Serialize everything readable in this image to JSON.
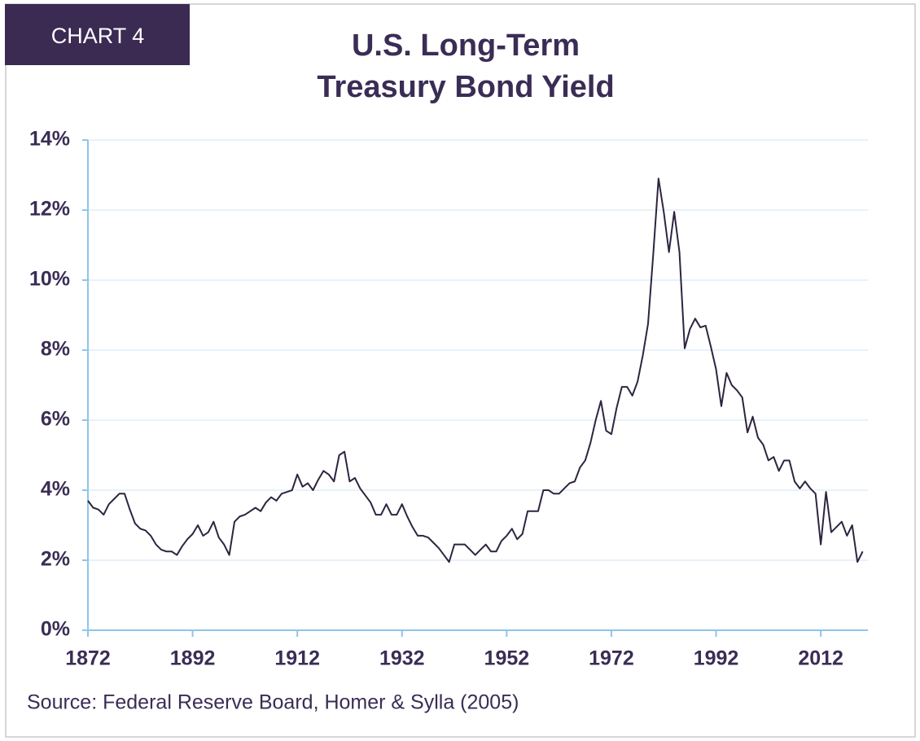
{
  "badge": "CHART 4",
  "chart_data": {
    "type": "line",
    "title": [
      "U.S. Long-Term",
      "Treasury Bond Yield"
    ],
    "source": "Source: Federal Reserve Board, Homer & Sylla (2005)",
    "x": [
      1872,
      1873,
      1874,
      1875,
      1876,
      1877,
      1878,
      1879,
      1880,
      1881,
      1882,
      1883,
      1884,
      1885,
      1886,
      1887,
      1888,
      1889,
      1890,
      1891,
      1892,
      1893,
      1894,
      1895,
      1896,
      1897,
      1898,
      1899,
      1900,
      1901,
      1902,
      1903,
      1904,
      1905,
      1906,
      1907,
      1908,
      1909,
      1910,
      1911,
      1912,
      1913,
      1914,
      1915,
      1916,
      1917,
      1918,
      1919,
      1920,
      1921,
      1922,
      1923,
      1924,
      1925,
      1926,
      1927,
      1928,
      1929,
      1930,
      1931,
      1932,
      1933,
      1934,
      1935,
      1936,
      1937,
      1938,
      1939,
      1940,
      1941,
      1942,
      1943,
      1944,
      1945,
      1946,
      1947,
      1948,
      1949,
      1950,
      1951,
      1952,
      1953,
      1954,
      1955,
      1956,
      1957,
      1958,
      1959,
      1960,
      1961,
      1962,
      1963,
      1964,
      1965,
      1966,
      1967,
      1968,
      1969,
      1970,
      1971,
      1972,
      1973,
      1974,
      1975,
      1976,
      1977,
      1978,
      1979,
      1980,
      1981,
      1982,
      1983,
      1984,
      1985,
      1986,
      1987,
      1988,
      1989,
      1990,
      1991,
      1992,
      1993,
      1994,
      1995,
      1996,
      1997,
      1998,
      1999,
      2000,
      2001,
      2002,
      2003,
      2004,
      2005,
      2006,
      2007,
      2008,
      2009,
      2010,
      2011,
      2012,
      2013,
      2014,
      2015,
      2016,
      2017,
      2018,
      2019,
      2020
    ],
    "series": [
      {
        "color": "#2e2440",
        "values": [
          3.7,
          3.5,
          3.45,
          3.3,
          3.6,
          3.75,
          3.9,
          3.9,
          3.45,
          3.05,
          2.9,
          2.85,
          2.7,
          2.45,
          2.3,
          2.25,
          2.25,
          2.15,
          2.4,
          2.6,
          2.75,
          3.0,
          2.7,
          2.8,
          3.1,
          2.65,
          2.45,
          2.15,
          3.1,
          3.25,
          3.3,
          3.4,
          3.5,
          3.4,
          3.65,
          3.8,
          3.7,
          3.9,
          3.95,
          4.0,
          4.45,
          4.1,
          4.2,
          4.0,
          4.3,
          4.55,
          4.45,
          4.25,
          5.0,
          5.1,
          4.25,
          4.35,
          4.05,
          3.85,
          3.65,
          3.3,
          3.3,
          3.6,
          3.3,
          3.3,
          3.6,
          3.25,
          2.95,
          2.7,
          2.7,
          2.65,
          2.5,
          2.35,
          2.15,
          1.95,
          2.45,
          2.45,
          2.45,
          2.3,
          2.15,
          2.3,
          2.45,
          2.25,
          2.25,
          2.55,
          2.7,
          2.9,
          2.6,
          2.75,
          3.4,
          3.4,
          3.4,
          4.0,
          4.0,
          3.9,
          3.9,
          4.05,
          4.2,
          4.25,
          4.65,
          4.85,
          5.35,
          6.0,
          6.55,
          5.7,
          5.6,
          6.35,
          6.95,
          6.95,
          6.7,
          7.1,
          7.85,
          8.75,
          10.75,
          12.9,
          11.95,
          10.8,
          11.95,
          10.8,
          8.05,
          8.6,
          8.9,
          8.65,
          8.7,
          8.1,
          7.45,
          6.4,
          7.35,
          7.0,
          6.85,
          6.65,
          5.65,
          6.1,
          5.5,
          5.3,
          4.85,
          4.95,
          4.55,
          4.85,
          4.85,
          4.25,
          4.05,
          4.25,
          4.05,
          3.9,
          2.45,
          3.95,
          2.8,
          2.95,
          3.1,
          2.7,
          3.0,
          1.95,
          2.25
        ]
      }
    ],
    "xlim": [
      1872,
      2021
    ],
    "xticks": [
      1872,
      1892,
      1912,
      1932,
      1952,
      1972,
      1992,
      2012
    ],
    "ylim": [
      0,
      14
    ],
    "yticks": [
      {
        "value": 0,
        "label": "0%"
      },
      {
        "value": 2,
        "label": "2%"
      },
      {
        "value": 4,
        "label": "4%"
      },
      {
        "value": 6,
        "label": "6%"
      },
      {
        "value": 8,
        "label": "8%"
      },
      {
        "value": 10,
        "label": "10%"
      },
      {
        "value": 12,
        "label": "12%"
      },
      {
        "value": 14,
        "label": "14%"
      }
    ],
    "grid": true
  }
}
